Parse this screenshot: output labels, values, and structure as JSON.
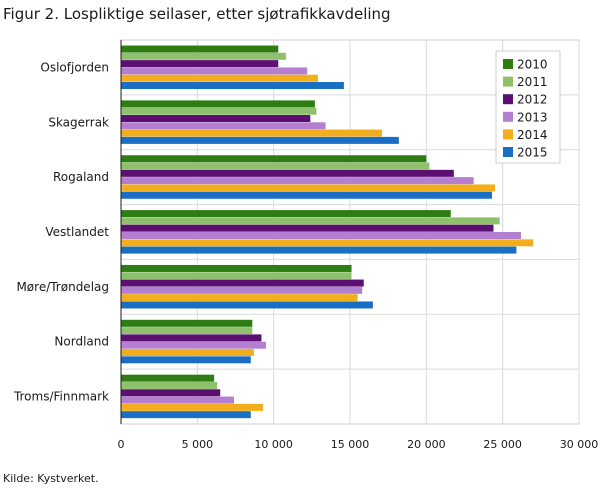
{
  "figure": {
    "title": "Figur 2. Lospliktige seilaser, etter sjøtrafikkavdeling",
    "source": "Kilde: Kystverket."
  },
  "chart_data": {
    "type": "bar",
    "orientation": "horizontal",
    "title": "Figur 2. Lospliktige seilaser, etter sjøtrafikkavdeling",
    "categories": [
      "Oslofjorden",
      "Skagerrak",
      "Rogaland",
      "Vestlandet",
      "Møre/Trøndelag",
      "Nordland",
      "Troms/Finnmark"
    ],
    "series": [
      {
        "name": "2010",
        "color": "#2e7d13",
        "values": [
          10300,
          12700,
          20000,
          21600,
          15100,
          8600,
          6100
        ]
      },
      {
        "name": "2011",
        "color": "#8fc06b",
        "values": [
          10800,
          12800,
          20200,
          24800,
          15100,
          8600,
          6300
        ]
      },
      {
        "name": "2012",
        "color": "#5c0f73",
        "values": [
          10300,
          12400,
          21800,
          24400,
          15900,
          9200,
          6500
        ]
      },
      {
        "name": "2013",
        "color": "#b57fd1",
        "values": [
          12200,
          13400,
          23100,
          26200,
          15800,
          9500,
          7400
        ]
      },
      {
        "name": "2014",
        "color": "#f2ae1c",
        "values": [
          12900,
          17100,
          24500,
          27000,
          15500,
          8700,
          9300
        ]
      },
      {
        "name": "2015",
        "color": "#1a6fc4",
        "values": [
          14600,
          18200,
          24300,
          25900,
          16500,
          8500,
          8500
        ]
      }
    ],
    "xlim": [
      0,
      30000
    ],
    "xticks": [
      0,
      5000,
      10000,
      15000,
      20000,
      25000,
      30000
    ],
    "xtick_labels": [
      "0",
      "5 000",
      "10 000",
      "15 000",
      "20 000",
      "25 000",
      "30 000"
    ],
    "xlabel": "",
    "ylabel": "",
    "grid": true,
    "legend_position": "top-right"
  }
}
